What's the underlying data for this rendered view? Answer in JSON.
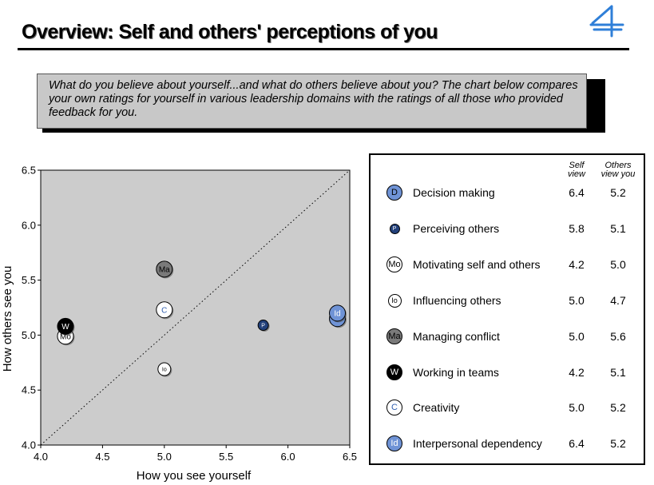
{
  "header": {
    "title": "Overview: Self and others' perceptions of you",
    "intro": "What do you believe about yourself...and what do others believe about you? The chart below compares your own ratings for yourself in various leadership domains with the ratings of all those who provided feedback for you."
  },
  "legend": {
    "self_header_line1": "Self",
    "self_header_line2": "view",
    "others_header_line1": "Others",
    "others_header_line2": "view you",
    "items": [
      {
        "code": "D",
        "label": "Decision making",
        "self": "6.4",
        "others": "5.2",
        "fill": "#6f93d6",
        "text": "#000000",
        "size": "l"
      },
      {
        "code": "P",
        "label": "Perceiving others",
        "self": "5.8",
        "others": "5.1",
        "fill": "#22407a",
        "text": "#ffffff",
        "size": "s"
      },
      {
        "code": "Mo",
        "label": "Motivating self and others",
        "self": "4.2",
        "others": "5.0",
        "fill": "#ffffff",
        "text": "#000000",
        "size": "l"
      },
      {
        "code": "Io",
        "label": "Influencing others",
        "self": "5.0",
        "others": "4.7",
        "fill": "#ffffff",
        "text": "#000000",
        "size": "m"
      },
      {
        "code": "Ma",
        "label": "Managing conflict",
        "self": "5.0",
        "others": "5.6",
        "fill": "#7a7a7a",
        "text": "#000000",
        "size": "l"
      },
      {
        "code": "W",
        "label": "Working in teams",
        "self": "4.2",
        "others": "5.1",
        "fill": "#000000",
        "text": "#ffffff",
        "size": "l"
      },
      {
        "code": "C",
        "label": "Creativity",
        "self": "5.0",
        "others": "5.2",
        "fill": "#ffffff",
        "text": "#2f5fb0",
        "size": "l"
      },
      {
        "code": "Id",
        "label": "Interpersonal dependency",
        "self": "6.4",
        "others": "5.2",
        "fill": "#6f93d6",
        "text": "#ffffff",
        "size": "l"
      }
    ]
  },
  "chart_data": {
    "type": "scatter",
    "xlabel": "How you see yourself",
    "ylabel": "How others see you",
    "xlim": [
      4.0,
      6.5
    ],
    "ylim": [
      4.0,
      6.5
    ],
    "xticks": [
      "4.0",
      "4.5",
      "5.0",
      "5.5",
      "6.0",
      "6.5"
    ],
    "yticks": [
      "4.0",
      "4.5",
      "5.0",
      "5.5",
      "6.0",
      "6.5"
    ],
    "plot_background": "#cccccc",
    "reference_line": "y = x (dotted)",
    "points": [
      {
        "code": "D",
        "x": 6.4,
        "y": 5.15,
        "fill": "#6f93d6",
        "text": "#000000",
        "size": "l"
      },
      {
        "code": "Id",
        "x": 6.4,
        "y": 5.2,
        "fill": "#6f93d6",
        "text": "#ffffff",
        "size": "l"
      },
      {
        "code": "P",
        "x": 5.8,
        "y": 5.09,
        "fill": "#22407a",
        "text": "#ffffff",
        "size": "s"
      },
      {
        "code": "Mo",
        "x": 4.2,
        "y": 4.99,
        "fill": "#ffffff",
        "text": "#000000",
        "size": "l"
      },
      {
        "code": "W",
        "x": 4.2,
        "y": 5.08,
        "fill": "#000000",
        "text": "#ffffff",
        "size": "l"
      },
      {
        "code": "Ma",
        "x": 5.0,
        "y": 5.6,
        "fill": "#7a7a7a",
        "text": "#000000",
        "size": "l"
      },
      {
        "code": "C",
        "x": 5.0,
        "y": 5.23,
        "fill": "#ffffff",
        "text": "#2f5fb0",
        "size": "l"
      },
      {
        "code": "Io",
        "x": 5.0,
        "y": 4.69,
        "fill": "#ffffff",
        "text": "#000000",
        "size": "m"
      }
    ]
  }
}
